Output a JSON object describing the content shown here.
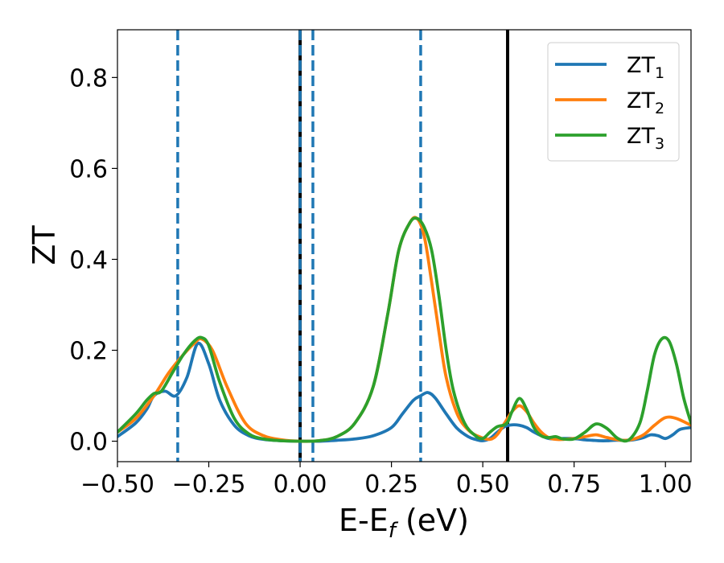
{
  "chart_data": {
    "type": "line",
    "xlabel": "E-E",
    "xlabel_sub": "f",
    "xlabel_unit": " (eV)",
    "ylabel": "ZT",
    "xlim": [
      -0.5,
      1.07
    ],
    "ylim": [
      -0.045,
      0.905
    ],
    "xticks": [
      -0.5,
      -0.25,
      0.0,
      0.25,
      0.5,
      0.75,
      1.0
    ],
    "xtick_labels": [
      "−0.50",
      "−0.25",
      "0.00",
      "0.25",
      "0.50",
      "0.75",
      "1.00"
    ],
    "yticks": [
      0.0,
      0.2,
      0.4,
      0.6,
      0.8
    ],
    "ytick_labels": [
      "0.0",
      "0.2",
      "0.4",
      "0.6",
      "0.8"
    ],
    "grid": false,
    "legend": "top-right",
    "colors": {
      "ZT1": "#1f77b4",
      "ZT2": "#ff7f0e",
      "ZT3": "#2ca02c",
      "vline": "#000000"
    },
    "series": [
      {
        "name": "ZT",
        "sub": "1",
        "color": "#1f77b4",
        "x": [
          -0.5,
          -0.45,
          -0.42,
          -0.4,
          -0.37,
          -0.34,
          -0.31,
          -0.28,
          -0.25,
          -0.22,
          -0.18,
          -0.14,
          -0.1,
          -0.05,
          0.0,
          0.05,
          0.1,
          0.15,
          0.2,
          0.25,
          0.28,
          0.31,
          0.33,
          0.35,
          0.37,
          0.4,
          0.43,
          0.46,
          0.48,
          0.5,
          0.52,
          0.54,
          0.56,
          0.58,
          0.6,
          0.62,
          0.64,
          0.66,
          0.68,
          0.7,
          0.72,
          0.74,
          0.76,
          0.78,
          0.8,
          0.82,
          0.84,
          0.86,
          0.88,
          0.9,
          0.92,
          0.94,
          0.96,
          0.98,
          1.0,
          1.02,
          1.04,
          1.07
        ],
        "y": [
          0.01,
          0.04,
          0.07,
          0.1,
          0.11,
          0.1,
          0.14,
          0.215,
          0.17,
          0.09,
          0.035,
          0.012,
          0.004,
          0.001,
          0.0,
          0.0,
          0.002,
          0.005,
          0.012,
          0.03,
          0.06,
          0.09,
          0.1,
          0.107,
          0.095,
          0.06,
          0.028,
          0.01,
          0.004,
          0.001,
          0.006,
          0.02,
          0.032,
          0.036,
          0.035,
          0.03,
          0.02,
          0.012,
          0.006,
          0.005,
          0.006,
          0.006,
          0.005,
          0.003,
          0.002,
          0.001,
          0.001,
          0.002,
          0.002,
          0.002,
          0.004,
          0.008,
          0.014,
          0.012,
          0.006,
          0.014,
          0.026,
          0.03
        ]
      },
      {
        "name": "ZT",
        "sub": "2",
        "color": "#ff7f0e",
        "x": [
          -0.5,
          -0.45,
          -0.4,
          -0.36,
          -0.32,
          -0.29,
          -0.27,
          -0.24,
          -0.2,
          -0.15,
          -0.1,
          -0.05,
          0.0,
          0.05,
          0.1,
          0.15,
          0.2,
          0.24,
          0.27,
          0.3,
          0.32,
          0.34,
          0.36,
          0.38,
          0.4,
          0.43,
          0.46,
          0.49,
          0.52,
          0.54,
          0.56,
          0.58,
          0.6,
          0.62,
          0.64,
          0.66,
          0.68,
          0.7,
          0.72,
          0.75,
          0.78,
          0.81,
          0.84,
          0.88,
          0.91,
          0.94,
          0.97,
          1.0,
          1.03,
          1.07
        ],
        "y": [
          0.02,
          0.05,
          0.1,
          0.15,
          0.19,
          0.215,
          0.225,
          0.2,
          0.12,
          0.04,
          0.012,
          0.003,
          0.0,
          0.001,
          0.01,
          0.04,
          0.12,
          0.28,
          0.42,
          0.48,
          0.49,
          0.45,
          0.35,
          0.24,
          0.14,
          0.06,
          0.025,
          0.01,
          0.004,
          0.015,
          0.04,
          0.065,
          0.078,
          0.065,
          0.04,
          0.02,
          0.008,
          0.004,
          0.004,
          0.006,
          0.01,
          0.014,
          0.008,
          0.002,
          0.004,
          0.014,
          0.035,
          0.052,
          0.05,
          0.035
        ]
      },
      {
        "name": "ZT",
        "sub": "3",
        "color": "#2ca02c",
        "x": [
          -0.5,
          -0.45,
          -0.42,
          -0.4,
          -0.38,
          -0.35,
          -0.32,
          -0.29,
          -0.27,
          -0.25,
          -0.22,
          -0.18,
          -0.14,
          -0.1,
          -0.05,
          0.0,
          0.05,
          0.1,
          0.15,
          0.2,
          0.24,
          0.27,
          0.3,
          0.32,
          0.34,
          0.36,
          0.38,
          0.4,
          0.42,
          0.45,
          0.48,
          0.5,
          0.52,
          0.54,
          0.56,
          0.57,
          0.58,
          0.6,
          0.62,
          0.64,
          0.66,
          0.68,
          0.7,
          0.72,
          0.75,
          0.78,
          0.81,
          0.84,
          0.87,
          0.9,
          0.93,
          0.95,
          0.97,
          0.99,
          1.01,
          1.03,
          1.05,
          1.07
        ],
        "y": [
          0.02,
          0.06,
          0.09,
          0.105,
          0.11,
          0.15,
          0.19,
          0.22,
          0.228,
          0.21,
          0.13,
          0.05,
          0.016,
          0.005,
          0.001,
          0.0,
          0.001,
          0.01,
          0.04,
          0.12,
          0.28,
          0.42,
          0.48,
          0.49,
          0.47,
          0.42,
          0.32,
          0.2,
          0.11,
          0.04,
          0.012,
          0.006,
          0.02,
          0.032,
          0.036,
          0.045,
          0.065,
          0.094,
          0.07,
          0.03,
          0.012,
          0.008,
          0.01,
          0.005,
          0.005,
          0.02,
          0.038,
          0.028,
          0.006,
          0.003,
          0.04,
          0.11,
          0.19,
          0.225,
          0.22,
          0.17,
          0.095,
          0.04
        ]
      }
    ],
    "vlines": [
      {
        "x": -0.335,
        "style": "dashed",
        "color": "#1f77b4"
      },
      {
        "x": 0.0,
        "style": "solid",
        "color": "#000000"
      },
      {
        "x": 0.0,
        "style": "dashed",
        "color": "#1f77b4"
      },
      {
        "x": 0.035,
        "style": "dashed",
        "color": "#1f77b4"
      },
      {
        "x": 0.33,
        "style": "dashed",
        "color": "#1f77b4"
      },
      {
        "x": 0.568,
        "style": "solid",
        "color": "#000000"
      }
    ]
  }
}
